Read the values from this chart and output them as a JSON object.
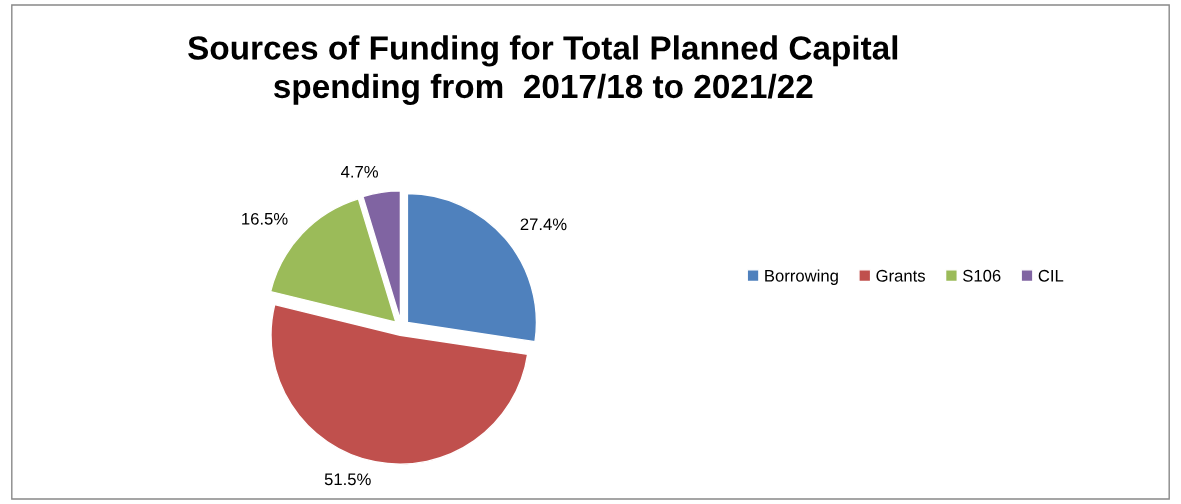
{
  "chart_data": {
    "type": "pie",
    "title": "Sources of Funding for Total Planned Capital\nspending from  2017/18 to 2021/22",
    "categories": [
      "Borrowing",
      "Grants",
      "S106",
      "CIL"
    ],
    "values": [
      27.4,
      51.5,
      16.5,
      4.7
    ],
    "colors": [
      "#4f81bd",
      "#c0504d",
      "#9bbb59",
      "#8064a2"
    ],
    "value_labels": [
      "27.4%",
      "51.5%",
      "16.5%",
      "4.7%"
    ],
    "legend": "right"
  }
}
